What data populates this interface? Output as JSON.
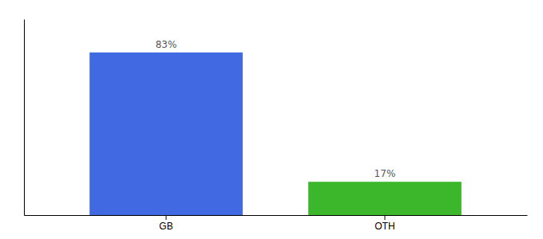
{
  "chart_data": {
    "type": "bar",
    "categories": [
      "GB",
      "OTH"
    ],
    "values": [
      83,
      17
    ],
    "value_labels": [
      "83%",
      "17%"
    ],
    "colors": [
      "#4169E1",
      "#3CB72C"
    ],
    "ylim": [
      0,
      100
    ],
    "grid": false,
    "data_labels": true,
    "tick_labels": "x"
  }
}
